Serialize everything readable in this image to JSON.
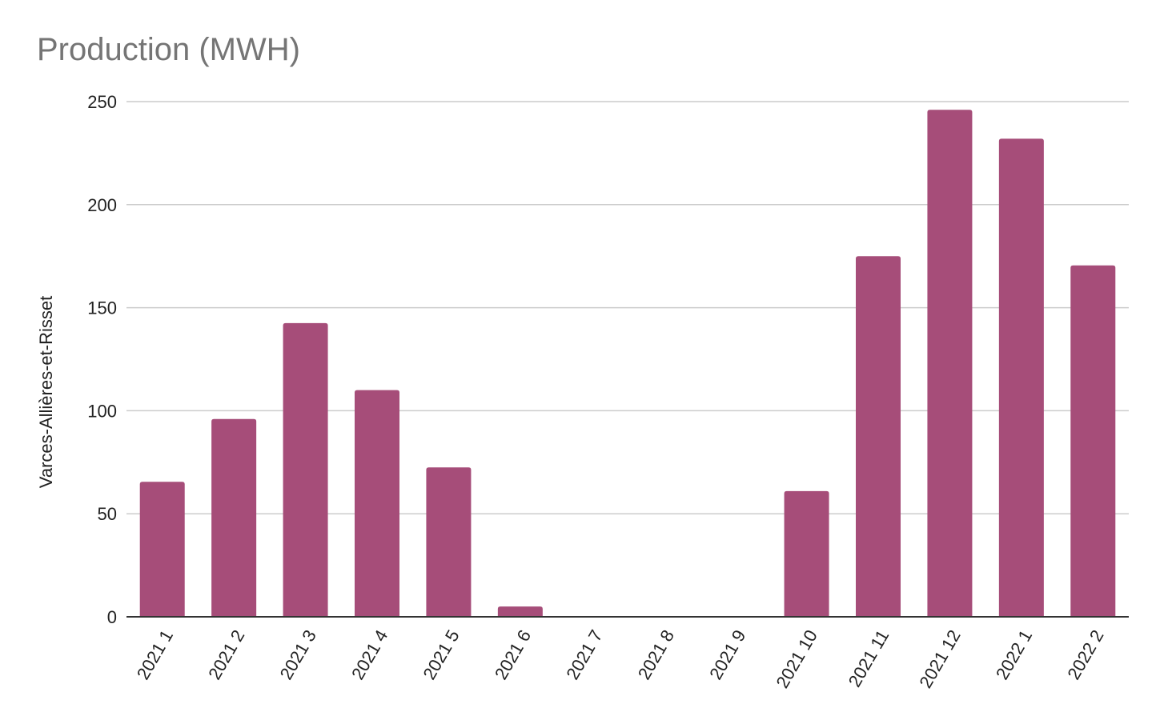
{
  "chart_data": {
    "type": "bar",
    "title": "Production (MWH)",
    "xlabel": "",
    "ylabel": "Varces-Allières-et-Risset",
    "categories": [
      "2021 1",
      "2021 2",
      "2021 3",
      "2021 4",
      "2021 5",
      "2021 6",
      "2021 7",
      "2021 8",
      "2021 9",
      "2021 10",
      "2021 11",
      "2021 12",
      "2022 1",
      "2022 2"
    ],
    "values": [
      65.5,
      96,
      142.5,
      110,
      72.5,
      5,
      0,
      0,
      0,
      61,
      175,
      246,
      232,
      170.5
    ],
    "ylim": [
      0,
      250
    ],
    "yticks": [
      0,
      50,
      100,
      150,
      200,
      250
    ],
    "grid": true,
    "legend": "none",
    "colors": {
      "bar": "#a64d79",
      "grid": "#cccccc",
      "axis": "#333333",
      "title": "#757575"
    }
  }
}
